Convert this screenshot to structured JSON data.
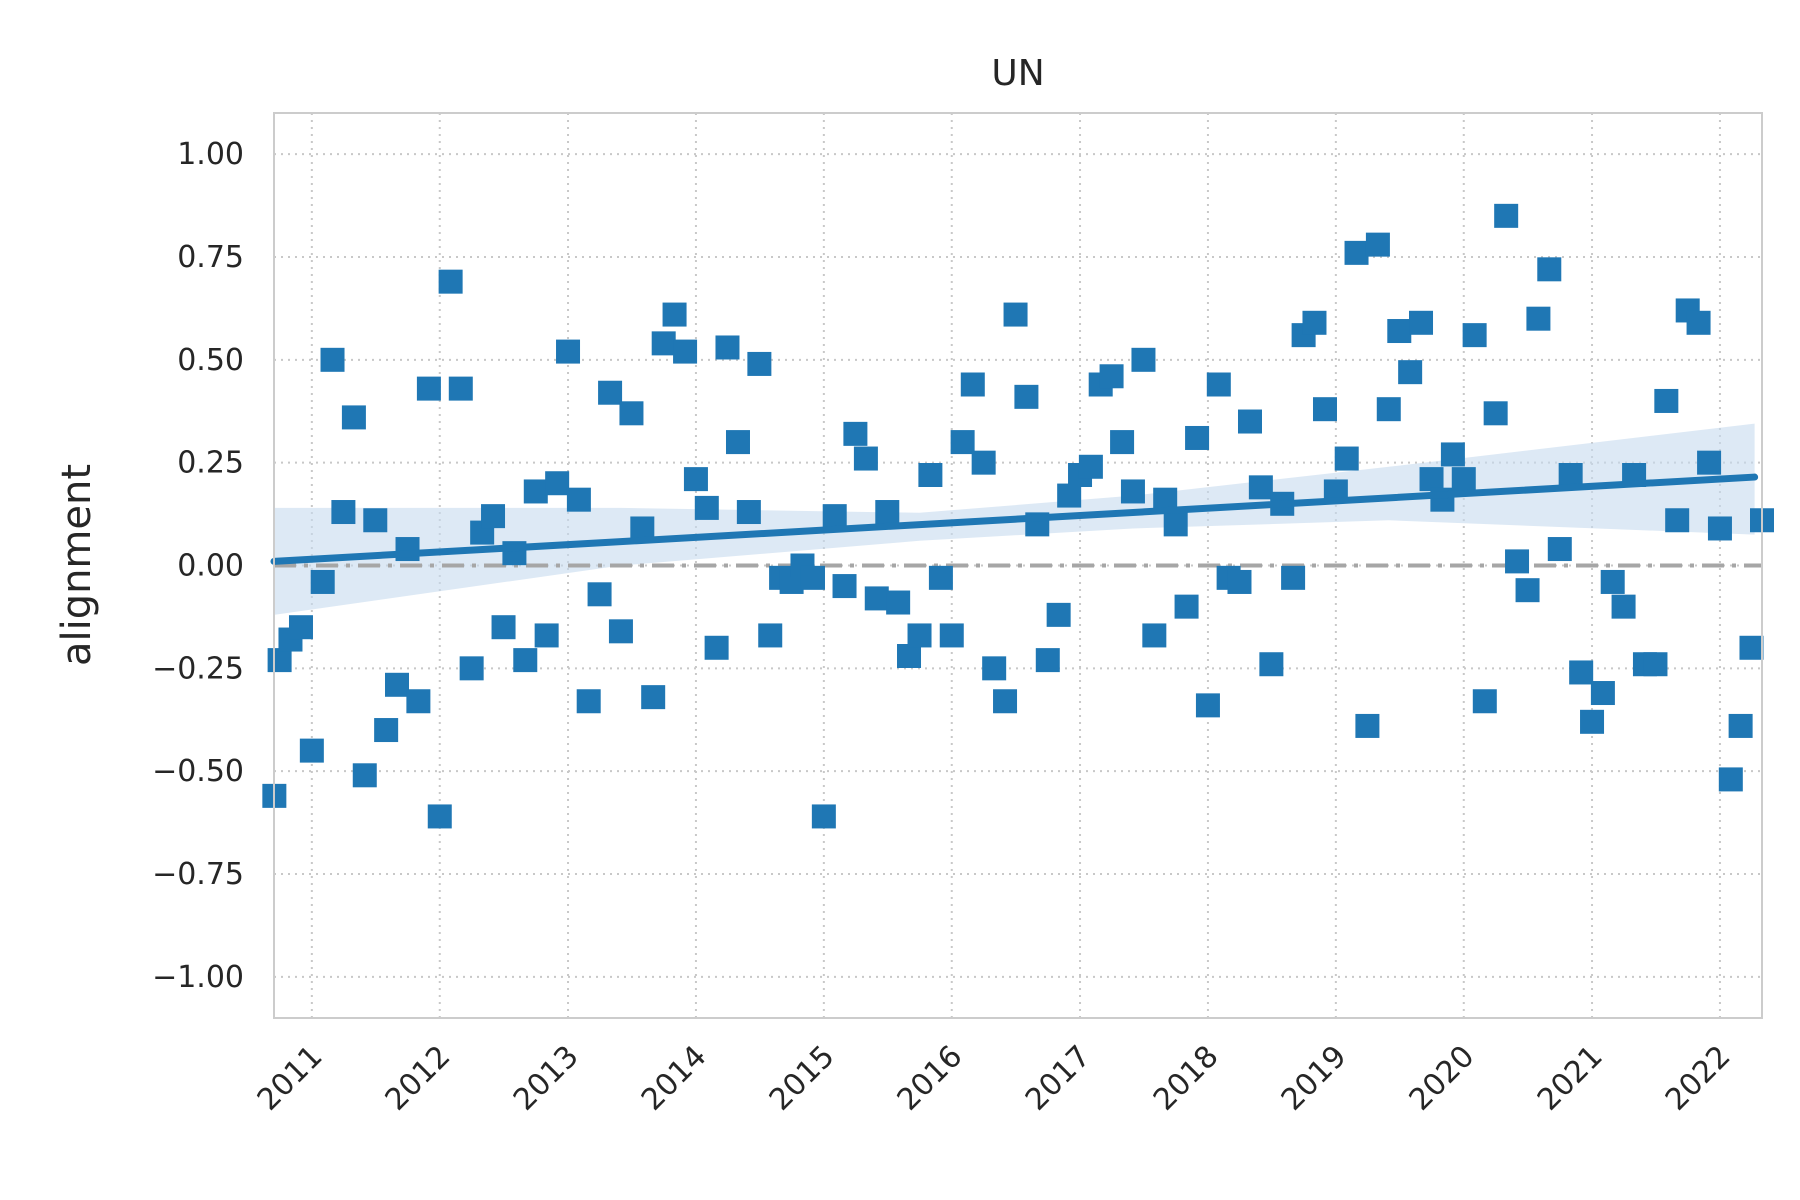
{
  "chart_data": {
    "type": "scatter",
    "title": "UN",
    "xlabel": "",
    "ylabel": "alignment",
    "xlim": [
      "2010-09-15",
      "2022-05-01"
    ],
    "ylim": [
      -1.1,
      1.1
    ],
    "yticks": [
      1.0,
      0.75,
      0.5,
      0.25,
      0.0,
      -0.25,
      -0.5,
      -0.75,
      -1.0
    ],
    "ytick_labels": [
      "1.00",
      "0.75",
      "0.50",
      "0.25",
      "0.00",
      "−0.25",
      "−0.50",
      "−0.75",
      "−1.00"
    ],
    "xtick_labels": [
      "2011",
      "2012",
      "2013",
      "2014",
      "2015",
      "2016",
      "2017",
      "2018",
      "2019",
      "2020",
      "2021",
      "2022"
    ],
    "grid": true,
    "marker": "square",
    "series_color": "#1f77b4",
    "band_color": "#c6dbef",
    "zero_line_color": "#a6a6a6",
    "points": [
      [
        "2010-09-16",
        -0.56
      ],
      [
        "2010-10-01",
        -0.23
      ],
      [
        "2010-11-01",
        -0.18
      ],
      [
        "2010-12-01",
        -0.15
      ],
      [
        "2011-01-01",
        -0.45
      ],
      [
        "2011-02-01",
        -0.04
      ],
      [
        "2011-03-01",
        0.5
      ],
      [
        "2011-04-01",
        0.13
      ],
      [
        "2011-05-01",
        0.36
      ],
      [
        "2011-06-01",
        -0.51
      ],
      [
        "2011-07-01",
        0.11
      ],
      [
        "2011-08-01",
        -0.4
      ],
      [
        "2011-09-01",
        -0.29
      ],
      [
        "2011-10-01",
        0.04
      ],
      [
        "2011-11-01",
        -0.33
      ],
      [
        "2011-12-01",
        0.43
      ],
      [
        "2012-01-01",
        -0.61
      ],
      [
        "2012-02-01",
        0.69
      ],
      [
        "2012-03-01",
        0.43
      ],
      [
        "2012-04-01",
        -0.25
      ],
      [
        "2012-05-01",
        0.08
      ],
      [
        "2012-06-01",
        0.12
      ],
      [
        "2012-07-01",
        -0.15
      ],
      [
        "2012-08-01",
        0.03
      ],
      [
        "2012-09-01",
        -0.23
      ],
      [
        "2012-10-01",
        0.18
      ],
      [
        "2012-11-01",
        -0.17
      ],
      [
        "2012-12-01",
        0.2
      ],
      [
        "2013-01-01",
        0.52
      ],
      [
        "2013-02-01",
        0.16
      ],
      [
        "2013-03-01",
        -0.33
      ],
      [
        "2013-04-01",
        -0.07
      ],
      [
        "2013-05-01",
        0.42
      ],
      [
        "2013-06-01",
        -0.16
      ],
      [
        "2013-07-01",
        0.37
      ],
      [
        "2013-08-01",
        0.09
      ],
      [
        "2013-09-01",
        -0.32
      ],
      [
        "2013-10-01",
        0.54
      ],
      [
        "2013-11-01",
        0.61
      ],
      [
        "2013-12-01",
        0.52
      ],
      [
        "2014-01-01",
        0.21
      ],
      [
        "2014-02-01",
        0.14
      ],
      [
        "2014-03-01",
        -0.2
      ],
      [
        "2014-04-01",
        0.53
      ],
      [
        "2014-05-01",
        0.3
      ],
      [
        "2014-06-01",
        0.13
      ],
      [
        "2014-07-01",
        0.49
      ],
      [
        "2014-08-01",
        -0.17
      ],
      [
        "2014-09-01",
        -0.03
      ],
      [
        "2014-10-01",
        -0.04
      ],
      [
        "2014-11-01",
        0.0
      ],
      [
        "2014-12-01",
        -0.03
      ],
      [
        "2015-01-01",
        -0.61
      ],
      [
        "2015-02-01",
        0.12
      ],
      [
        "2015-03-01",
        -0.05
      ],
      [
        "2015-04-01",
        0.32
      ],
      [
        "2015-05-01",
        0.26
      ],
      [
        "2015-06-01",
        -0.08
      ],
      [
        "2015-07-01",
        0.13
      ],
      [
        "2015-08-01",
        -0.09
      ],
      [
        "2015-09-01",
        -0.22
      ],
      [
        "2015-10-01",
        -0.17
      ],
      [
        "2015-11-01",
        0.22
      ],
      [
        "2015-12-01",
        -0.03
      ],
      [
        "2016-01-01",
        -0.17
      ],
      [
        "2016-02-01",
        0.3
      ],
      [
        "2016-03-01",
        0.44
      ],
      [
        "2016-04-01",
        0.25
      ],
      [
        "2016-05-01",
        -0.25
      ],
      [
        "2016-06-01",
        -0.33
      ],
      [
        "2016-07-01",
        0.61
      ],
      [
        "2016-08-01",
        0.41
      ],
      [
        "2016-09-01",
        0.1
      ],
      [
        "2016-10-01",
        -0.23
      ],
      [
        "2016-11-01",
        -0.12
      ],
      [
        "2016-12-01",
        0.17
      ],
      [
        "2017-01-01",
        0.22
      ],
      [
        "2017-02-01",
        0.24
      ],
      [
        "2017-03-01",
        0.44
      ],
      [
        "2017-04-01",
        0.46
      ],
      [
        "2017-05-01",
        0.3
      ],
      [
        "2017-06-01",
        0.18
      ],
      [
        "2017-07-01",
        0.5
      ],
      [
        "2017-08-01",
        -0.17
      ],
      [
        "2017-09-01",
        0.16
      ],
      [
        "2017-10-01",
        0.1
      ],
      [
        "2017-11-01",
        -0.1
      ],
      [
        "2017-12-01",
        0.31
      ],
      [
        "2018-01-01",
        -0.34
      ],
      [
        "2018-02-01",
        0.44
      ],
      [
        "2018-03-01",
        -0.03
      ],
      [
        "2018-04-01",
        -0.04
      ],
      [
        "2018-05-01",
        0.35
      ],
      [
        "2018-06-01",
        0.19
      ],
      [
        "2018-07-01",
        -0.24
      ],
      [
        "2018-08-01",
        0.15
      ],
      [
        "2018-09-01",
        -0.03
      ],
      [
        "2018-10-01",
        0.56
      ],
      [
        "2018-11-01",
        0.59
      ],
      [
        "2018-12-01",
        0.38
      ],
      [
        "2019-01-01",
        0.18
      ],
      [
        "2019-02-01",
        0.26
      ],
      [
        "2019-03-01",
        0.76
      ],
      [
        "2019-04-01",
        -0.39
      ],
      [
        "2019-05-01",
        0.78
      ],
      [
        "2019-06-01",
        0.38
      ],
      [
        "2019-07-01",
        0.57
      ],
      [
        "2019-08-01",
        0.47
      ],
      [
        "2019-09-01",
        0.59
      ],
      [
        "2019-10-01",
        0.21
      ],
      [
        "2019-11-01",
        0.16
      ],
      [
        "2019-12-01",
        0.27
      ],
      [
        "2020-01-01",
        0.21
      ],
      [
        "2020-02-01",
        0.56
      ],
      [
        "2020-03-01",
        -0.33
      ],
      [
        "2020-04-01",
        0.37
      ],
      [
        "2020-05-01",
        0.85
      ],
      [
        "2020-06-01",
        0.01
      ],
      [
        "2020-07-01",
        -0.06
      ],
      [
        "2020-08-01",
        0.6
      ],
      [
        "2020-09-01",
        0.72
      ],
      [
        "2020-10-01",
        0.04
      ],
      [
        "2020-11-01",
        0.22
      ],
      [
        "2020-12-01",
        -0.26
      ],
      [
        "2021-01-01",
        -0.38
      ],
      [
        "2021-02-01",
        -0.31
      ],
      [
        "2021-03-01",
        -0.04
      ],
      [
        "2021-04-01",
        -0.1
      ],
      [
        "2021-05-01",
        0.22
      ],
      [
        "2021-06-01",
        -0.24
      ],
      [
        "2021-07-01",
        -0.24
      ],
      [
        "2021-08-01",
        0.4
      ],
      [
        "2021-09-01",
        0.11
      ],
      [
        "2021-10-01",
        0.62
      ],
      [
        "2021-11-01",
        0.59
      ],
      [
        "2021-12-01",
        0.25
      ],
      [
        "2022-01-01",
        0.09
      ],
      [
        "2022-02-01",
        -0.52
      ],
      [
        "2022-03-01",
        -0.39
      ],
      [
        "2022-04-01",
        -0.2
      ],
      [
        "2022-05-01",
        0.11
      ]
    ],
    "regression": {
      "start": [
        "2010-09-15",
        0.01
      ],
      "end": [
        "2022-04-10",
        0.215
      ]
    },
    "confidence_band": [
      [
        "2010-09-15",
        0.14,
        -0.12
      ],
      [
        "2013-06-01",
        0.14,
        0.0
      ],
      [
        "2015-10-01",
        0.128,
        0.06
      ],
      [
        "2017-06-01",
        0.17,
        0.09
      ],
      [
        "2019-06-01",
        0.24,
        0.11
      ],
      [
        "2022-04-10",
        0.345,
        0.075
      ]
    ]
  }
}
